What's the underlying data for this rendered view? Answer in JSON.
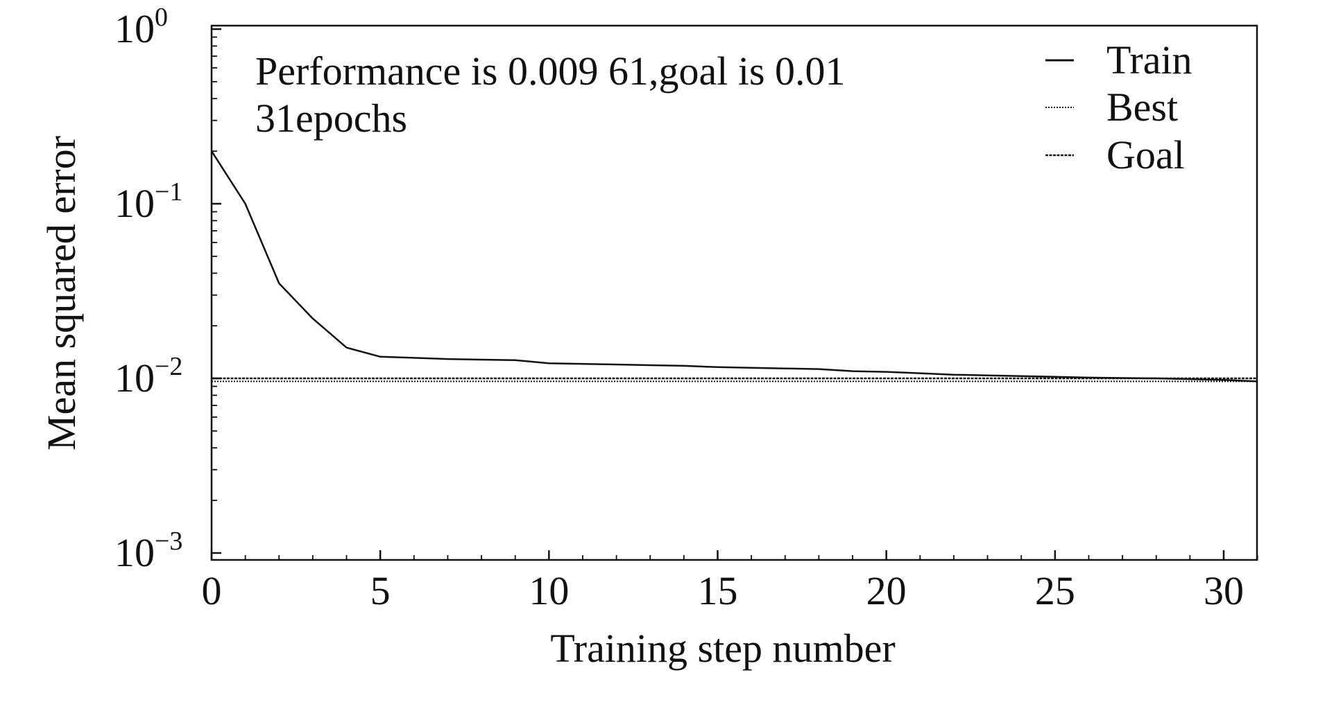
{
  "chart_data": {
    "type": "line",
    "scale_y": "log",
    "xlabel": "Training step number",
    "ylabel": "Mean squared error",
    "xlim": [
      0,
      31
    ],
    "ylim": [
      0.001,
      1
    ],
    "x_ticks": [
      0,
      5,
      10,
      15,
      20,
      25,
      30
    ],
    "y_ticks": [
      {
        "base": "10",
        "exp": "0"
      },
      {
        "base": "10",
        "exp": "−1"
      },
      {
        "base": "10",
        "exp": "−2"
      },
      {
        "base": "10",
        "exp": "−3"
      }
    ],
    "annotation": {
      "line1": "Performance is 0.009 61,goal is 0.01",
      "line2": "31epochs"
    },
    "legend_position": "top-right",
    "series": [
      {
        "name": "Train",
        "style": "solid",
        "x": [
          0,
          1,
          2,
          3,
          4,
          5,
          6,
          7,
          8,
          9,
          10,
          11,
          12,
          13,
          14,
          15,
          16,
          17,
          18,
          19,
          20,
          21,
          22,
          23,
          24,
          25,
          26,
          27,
          28,
          29,
          30,
          31
        ],
        "values": [
          0.2,
          0.1,
          0.035,
          0.022,
          0.015,
          0.0133,
          0.0131,
          0.0129,
          0.0128,
          0.0127,
          0.0122,
          0.0121,
          0.012,
          0.0119,
          0.0118,
          0.0116,
          0.0115,
          0.0114,
          0.0113,
          0.011,
          0.0109,
          0.0107,
          0.0105,
          0.0104,
          0.0103,
          0.0102,
          0.0101,
          0.01005,
          0.01,
          0.0099,
          0.0098,
          0.00961
        ]
      },
      {
        "name": "Best",
        "style": "dotted",
        "x": [
          0,
          31
        ],
        "values": [
          0.00961,
          0.00961
        ]
      },
      {
        "name": "Goal",
        "style": "dashed",
        "x": [
          0,
          31
        ],
        "values": [
          0.01,
          0.01
        ]
      }
    ]
  }
}
